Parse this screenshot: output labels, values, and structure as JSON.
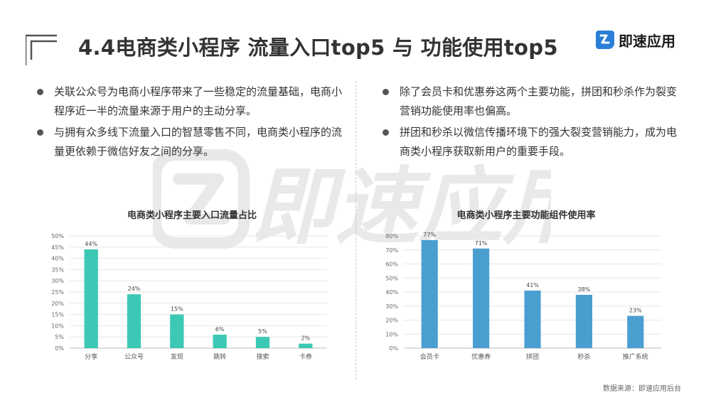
{
  "title": "4.4电商类小程序 流量入口top5 与 功能使用top5",
  "logo": {
    "text": "即速应用",
    "icon": "brand-logo-icon"
  },
  "watermark_text": "即速应用",
  "left_bullets": [
    "关联公众号为电商小程序带来了一些稳定的流量基础，电商小程序近一半的流量来源于用户的主动分享。",
    "与拥有众多线下流量入口的智慧零售不同，电商类小程序的流量更依赖于微信好友之间的分享。"
  ],
  "right_bullets": [
    "除了会员卡和优惠券这两个主要功能，拼团和秒杀作为裂变营销功能使用率也偏高。",
    "拼团和秒杀以微信传播环境下的强大裂变营销能力，成为电商类小程序获取新用户的重要手段。"
  ],
  "source": "数据来源：即速应用后台",
  "chart_data": [
    {
      "type": "bar",
      "title": "电商类小程序主要入口流量占比",
      "categories": [
        "分享",
        "公众号",
        "发现",
        "跳转",
        "搜索",
        "卡券"
      ],
      "values": [
        44,
        24,
        15,
        6,
        5,
        2
      ],
      "value_labels": [
        "44%",
        "24%",
        "15%",
        "6%",
        "5%",
        "2%"
      ],
      "yticks": [
        "0%",
        "5%",
        "10%",
        "15%",
        "20%",
        "25%",
        "30%",
        "35%",
        "40%",
        "45%",
        "50%"
      ],
      "ylim": [
        0,
        50
      ],
      "color": "#3cc8b4",
      "grid": true
    },
    {
      "type": "bar",
      "title": "电商类小程序主要功能组件使用率",
      "categories": [
        "会员卡",
        "优惠券",
        "拼团",
        "秒杀",
        "推广系统"
      ],
      "values": [
        77,
        71,
        41,
        38,
        23
      ],
      "value_labels": [
        "77%",
        "71%",
        "41%",
        "38%",
        "23%"
      ],
      "yticks": [
        "0%",
        "10%",
        "20%",
        "30%",
        "40%",
        "50%",
        "60%",
        "70%",
        "80%"
      ],
      "ylim": [
        0,
        80
      ],
      "color": "#4a9fd0",
      "grid": true
    }
  ]
}
